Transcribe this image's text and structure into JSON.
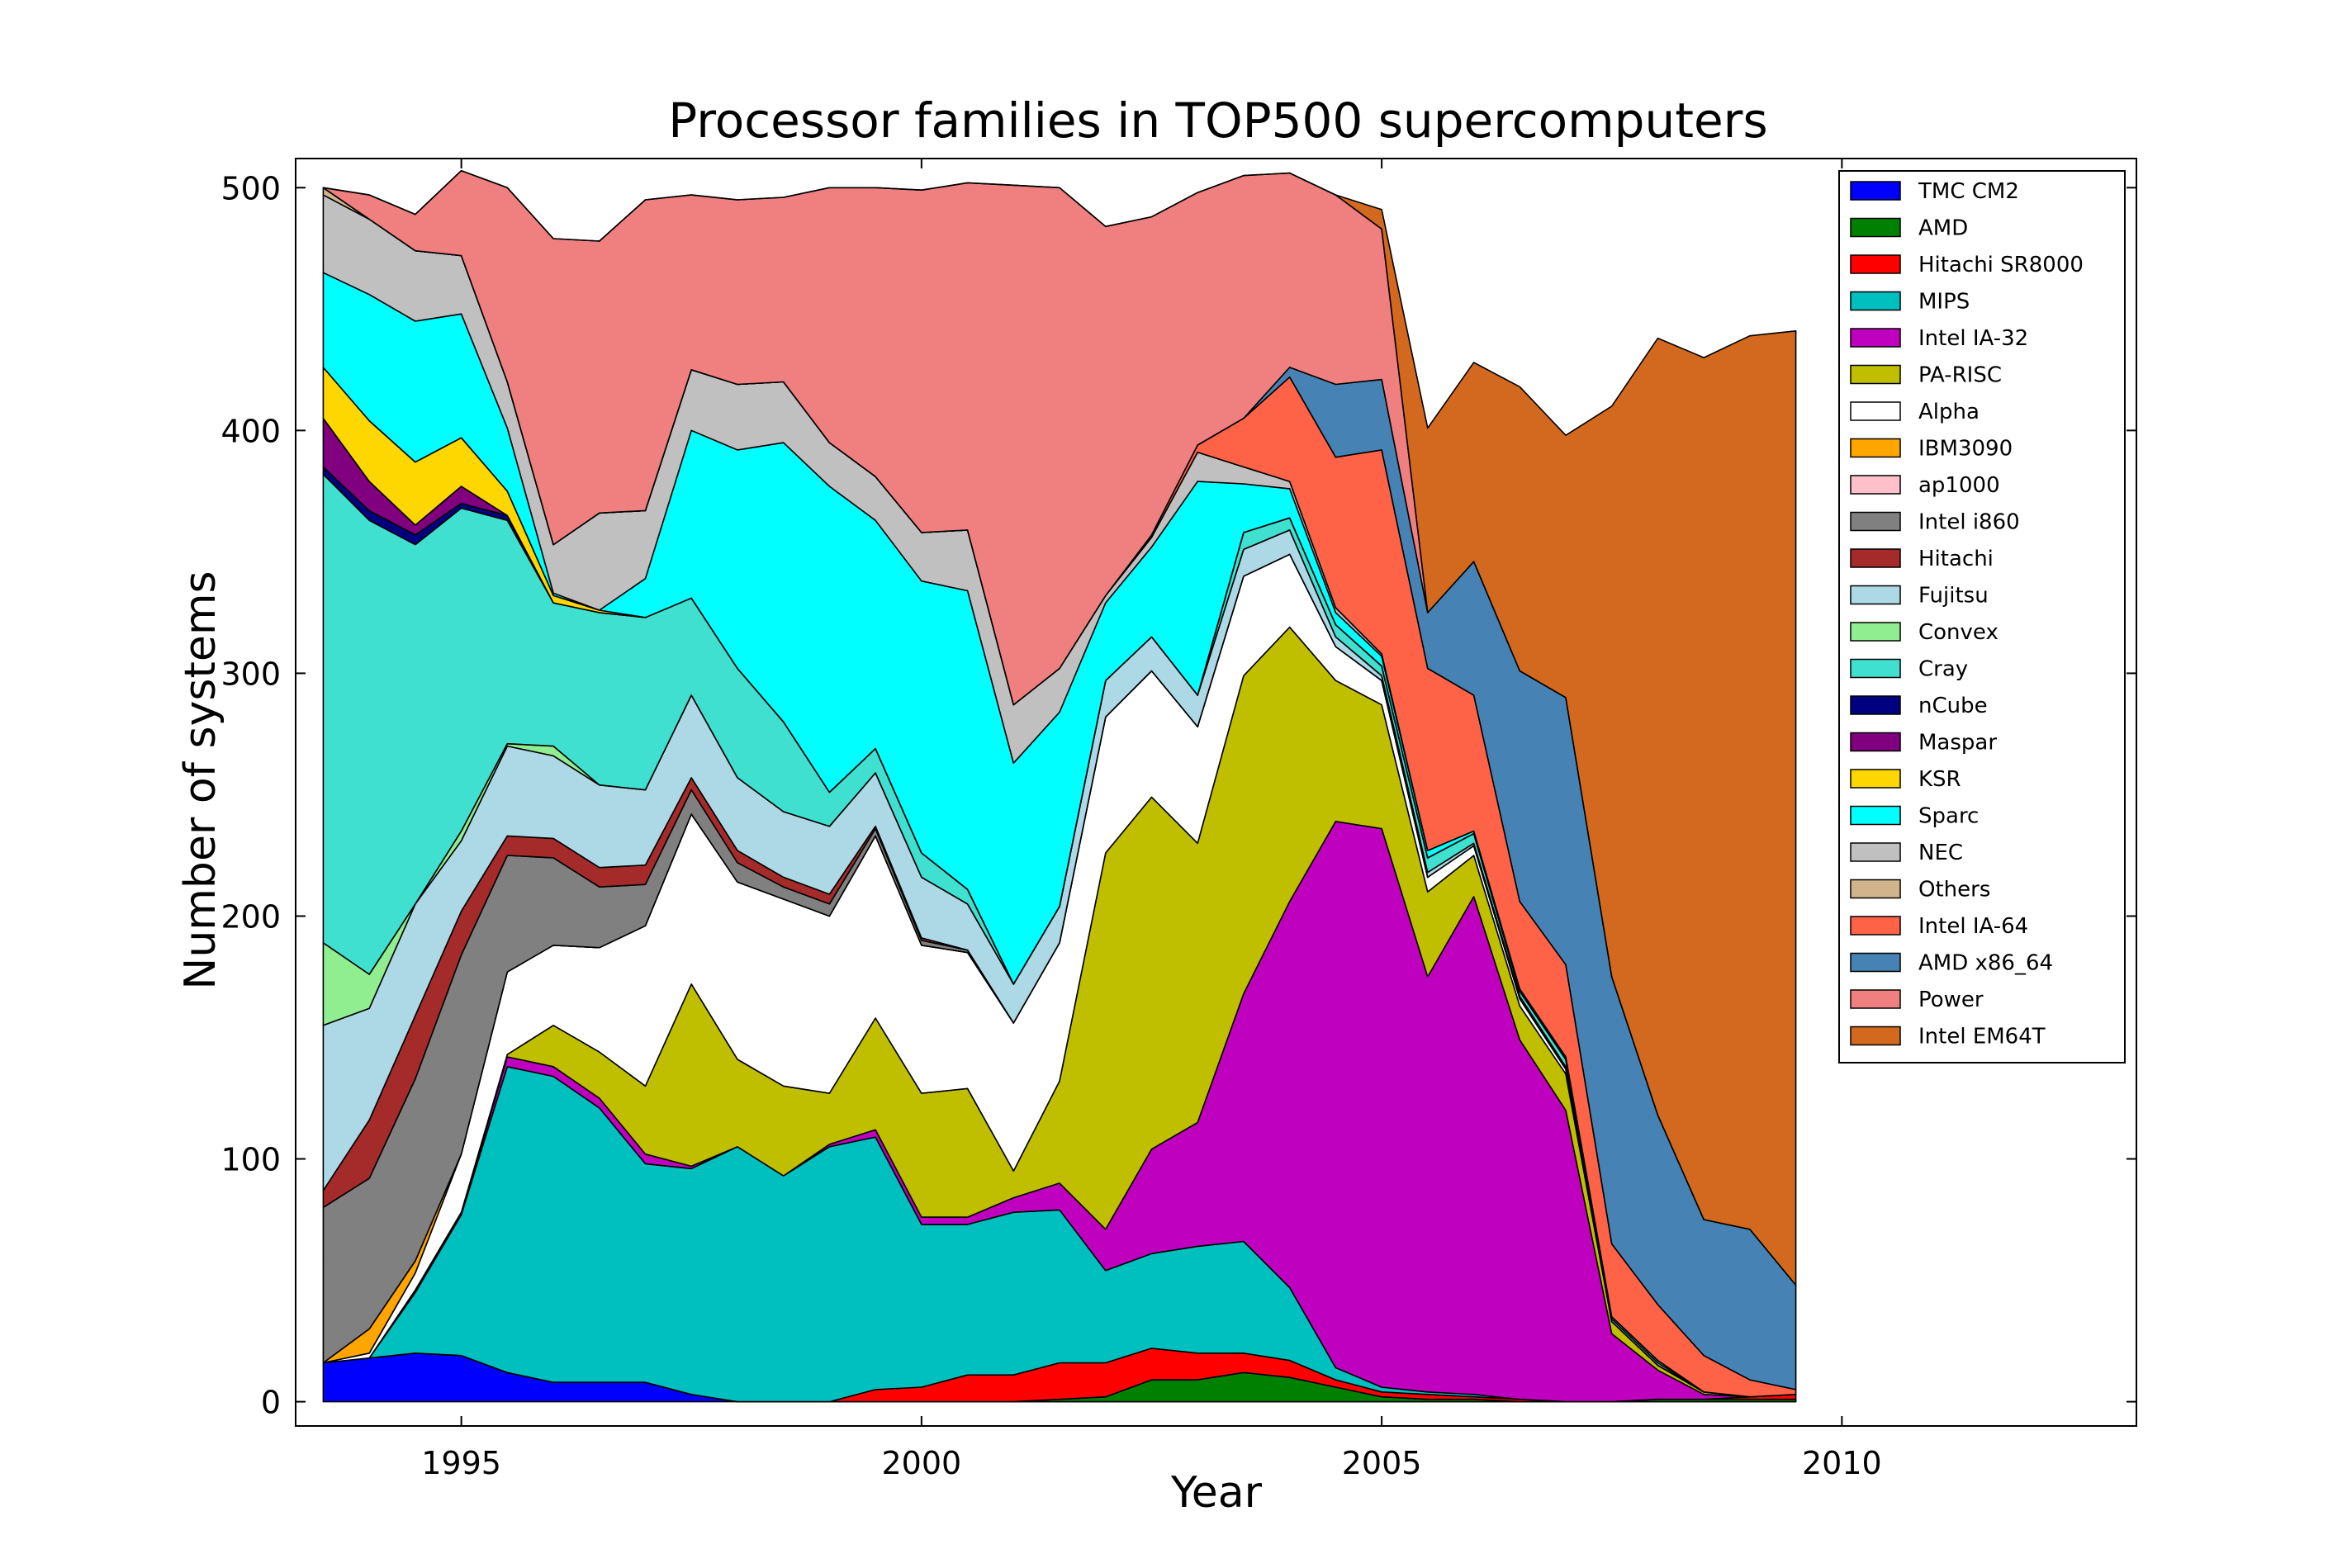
{
  "chart_data": {
    "type": "area",
    "stacked": true,
    "title": "Processor families in TOP500 supercomputers",
    "xlabel": "Year",
    "ylabel": "Number of systems",
    "xlim": [
      1993.2,
      2013.2
    ],
    "ylim": [
      -10,
      512
    ],
    "xticks": [
      1995,
      2000,
      2005,
      2010
    ],
    "yticks": [
      0,
      100,
      200,
      300,
      400,
      500
    ],
    "grid": false,
    "legend_position": "top-right",
    "x": [
      1993.5,
      1994.0,
      1994.5,
      1995.0,
      1995.5,
      1996.0,
      1996.5,
      1997.0,
      1997.5,
      1998.0,
      1998.5,
      1999.0,
      1999.5,
      2000.0,
      2000.5,
      2001.0,
      2001.5,
      2002.0,
      2002.5,
      2003.0,
      2003.5,
      2004.0,
      2004.5,
      2005.0,
      2005.5,
      2006.0,
      2006.5,
      2007.0,
      2007.5,
      2008.0,
      2008.5,
      2009.0,
      2009.5
    ],
    "series": [
      {
        "name": "TMC CM2",
        "color": "#0000ff",
        "values": [
          16,
          18,
          20,
          19,
          12,
          8,
          8,
          8,
          3,
          0,
          0,
          0,
          0,
          0,
          0,
          0,
          0,
          0,
          0,
          0,
          0,
          0,
          0,
          0,
          0,
          0,
          0,
          0,
          0,
          0,
          0,
          0,
          0
        ]
      },
      {
        "name": "AMD",
        "color": "#008000",
        "values": [
          0,
          0,
          0,
          0,
          0,
          0,
          0,
          0,
          0,
          0,
          0,
          0,
          0,
          0,
          0,
          0,
          1,
          2,
          9,
          9,
          12,
          10,
          6,
          2,
          1,
          1,
          0,
          0,
          0,
          1,
          1,
          1,
          1
        ]
      },
      {
        "name": "Hitachi SR8000",
        "color": "#ff0000",
        "values": [
          0,
          0,
          0,
          0,
          0,
          0,
          0,
          0,
          0,
          0,
          0,
          0,
          5,
          6,
          11,
          11,
          15,
          14,
          13,
          11,
          8,
          7,
          3,
          2,
          2,
          1,
          1,
          0,
          0,
          0,
          0,
          1,
          2
        ]
      },
      {
        "name": "MIPS",
        "color": "#00bfbf",
        "values": [
          0,
          0,
          25,
          58,
          126,
          126,
          113,
          90,
          93,
          105,
          93,
          105,
          104,
          67,
          62,
          67,
          63,
          38,
          39,
          44,
          46,
          30,
          5,
          2,
          1,
          1,
          0,
          0,
          0,
          0,
          0,
          0,
          0
        ]
      },
      {
        "name": "Intel IA-32",
        "color": "#bf00bf",
        "values": [
          0,
          0,
          0,
          0,
          4,
          4,
          4,
          4,
          1,
          0,
          0,
          1,
          3,
          3,
          3,
          6,
          11,
          17,
          43,
          51,
          102,
          159,
          225,
          230,
          171,
          205,
          148,
          120,
          28,
          12,
          2,
          0,
          0
        ]
      },
      {
        "name": "PA-RISC",
        "color": "#bfbf00",
        "values": [
          0,
          0,
          1,
          1,
          1,
          17,
          19,
          28,
          75,
          36,
          37,
          21,
          46,
          51,
          53,
          11,
          42,
          155,
          145,
          115,
          131,
          113,
          58,
          51,
          35,
          17,
          14,
          15,
          5,
          2,
          1,
          0,
          0
        ]
      },
      {
        "name": "Alpha",
        "color": "#ffffff",
        "values": [
          0,
          2,
          7,
          24,
          34,
          33,
          43,
          66,
          70,
          73,
          77,
          73,
          75,
          61,
          56,
          61,
          57,
          56,
          52,
          48,
          41,
          30,
          14,
          10,
          6,
          4,
          3,
          2,
          0,
          0,
          0,
          0,
          0
        ]
      },
      {
        "name": "IBM3090",
        "color": "#ffa500",
        "values": [
          0,
          10,
          5,
          0,
          0,
          0,
          0,
          0,
          0,
          0,
          0,
          0,
          0,
          0,
          0,
          0,
          0,
          0,
          0,
          0,
          0,
          0,
          0,
          0,
          0,
          0,
          0,
          0,
          0,
          0,
          0,
          0,
          0
        ]
      },
      {
        "name": "ap1000",
        "color": "#ffc0cb",
        "values": [
          0,
          0,
          0,
          0,
          0,
          0,
          0,
          0,
          0,
          0,
          0,
          0,
          0,
          0,
          0,
          0,
          0,
          0,
          0,
          0,
          0,
          0,
          0,
          0,
          0,
          0,
          0,
          0,
          0,
          0,
          0,
          0,
          0
        ]
      },
      {
        "name": "Intel i860",
        "color": "#808080",
        "values": [
          64,
          62,
          75,
          82,
          48,
          36,
          25,
          17,
          10,
          8,
          5,
          5,
          3,
          2,
          1,
          0,
          0,
          0,
          0,
          0,
          0,
          0,
          0,
          0,
          0,
          0,
          0,
          0,
          0,
          0,
          0,
          0,
          0
        ]
      },
      {
        "name": "Hitachi",
        "color": "#a52a2a",
        "values": [
          7,
          24,
          26,
          18,
          8,
          8,
          8,
          8,
          5,
          5,
          4,
          4,
          1,
          1,
          0,
          0,
          0,
          0,
          0,
          0,
          0,
          0,
          0,
          0,
          0,
          0,
          0,
          0,
          0,
          0,
          0,
          0,
          0
        ]
      },
      {
        "name": "Fujitsu",
        "color": "#add8e6",
        "values": [
          68,
          46,
          46,
          29,
          37,
          34,
          34,
          31,
          34,
          30,
          27,
          28,
          22,
          25,
          19,
          16,
          15,
          15,
          14,
          13,
          11,
          10,
          4,
          2,
          2,
          1,
          1,
          1,
          1,
          1,
          0,
          0,
          0
        ]
      },
      {
        "name": "Convex",
        "color": "#90ee90",
        "values": [
          34,
          14,
          0,
          4,
          1,
          4,
          0,
          0,
          0,
          0,
          0,
          0,
          0,
          0,
          0,
          0,
          0,
          0,
          0,
          0,
          0,
          0,
          0,
          0,
          0,
          0,
          0,
          0,
          0,
          0,
          0,
          0,
          0
        ]
      },
      {
        "name": "Cray",
        "color": "#40e0d0",
        "values": [
          193,
          187,
          148,
          133,
          92,
          59,
          71,
          71,
          40,
          45,
          37,
          14,
          10,
          10,
          6,
          0,
          0,
          0,
          0,
          0,
          7,
          5,
          5,
          4,
          6,
          4,
          2,
          3,
          1,
          1,
          0,
          0,
          0
        ]
      },
      {
        "name": "nCube",
        "color": "#000080",
        "values": [
          3,
          4,
          4,
          2,
          2,
          0,
          0,
          0,
          0,
          0,
          0,
          0,
          0,
          0,
          0,
          0,
          0,
          0,
          0,
          0,
          0,
          0,
          0,
          0,
          0,
          0,
          0,
          0,
          0,
          0,
          0,
          0,
          0
        ]
      },
      {
        "name": "Maspar",
        "color": "#800080",
        "values": [
          20,
          12,
          4,
          7,
          0,
          0,
          0,
          0,
          0,
          0,
          0,
          0,
          0,
          0,
          0,
          0,
          0,
          0,
          0,
          0,
          0,
          0,
          0,
          0,
          0,
          0,
          0,
          0,
          0,
          0,
          0,
          0,
          0
        ]
      },
      {
        "name": "KSR",
        "color": "#ffd700",
        "values": [
          21,
          25,
          26,
          20,
          10,
          3,
          1,
          0,
          0,
          0,
          0,
          0,
          0,
          0,
          0,
          0,
          0,
          0,
          0,
          0,
          0,
          0,
          0,
          0,
          0,
          0,
          0,
          0,
          0,
          0,
          0,
          0,
          0
        ]
      },
      {
        "name": "Sparc",
        "color": "#00ffff",
        "values": [
          39,
          52,
          58,
          51,
          26,
          1,
          0,
          16,
          69,
          90,
          115,
          126,
          94,
          112,
          123,
          91,
          80,
          32,
          37,
          88,
          20,
          12,
          5,
          4,
          3,
          1,
          1,
          1,
          0,
          0,
          0,
          0,
          0
        ]
      },
      {
        "name": "NEC",
        "color": "#c0c0c0",
        "values": [
          32,
          31,
          29,
          24,
          19,
          20,
          40,
          28,
          25,
          27,
          25,
          18,
          18,
          20,
          25,
          24,
          18,
          3,
          4,
          12,
          7,
          3,
          2,
          1,
          0,
          0,
          0,
          0,
          0,
          0,
          0,
          0,
          0
        ]
      },
      {
        "name": "Others",
        "color": "#d2b48c",
        "values": [
          3,
          0,
          0,
          0,
          0,
          0,
          0,
          0,
          0,
          0,
          0,
          0,
          0,
          0,
          0,
          0,
          0,
          0,
          0,
          0,
          0,
          0,
          0,
          0,
          0,
          0,
          0,
          0,
          0,
          0,
          0,
          0,
          0
        ]
      },
      {
        "name": "Intel IA-64",
        "color": "#ff6347",
        "values": [
          0,
          0,
          0,
          0,
          0,
          0,
          0,
          0,
          0,
          0,
          0,
          0,
          0,
          0,
          0,
          0,
          0,
          0,
          1,
          3,
          20,
          43,
          62,
          84,
          75,
          56,
          36,
          38,
          30,
          23,
          15,
          7,
          2
        ]
      },
      {
        "name": "AMD x86_64",
        "color": "#4682b4",
        "values": [
          0,
          0,
          0,
          0,
          0,
          0,
          0,
          0,
          0,
          0,
          0,
          0,
          0,
          0,
          0,
          0,
          0,
          0,
          0,
          0,
          0,
          4,
          30,
          29,
          23,
          55,
          95,
          110,
          110,
          78,
          56,
          62,
          43
        ]
      },
      {
        "name": "Power",
        "color": "#f08080",
        "values": [
          0,
          10,
          15,
          35,
          80,
          126,
          112,
          128,
          72,
          76,
          76,
          105,
          119,
          141,
          143,
          214,
          198,
          152,
          131,
          104,
          100,
          80,
          78,
          62,
          0,
          0,
          0,
          0,
          0,
          0,
          0,
          0,
          0
        ]
      },
      {
        "name": "Intel EM64T",
        "color": "#d2691e",
        "values": [
          0,
          0,
          0,
          0,
          0,
          0,
          0,
          0,
          0,
          0,
          0,
          0,
          0,
          0,
          0,
          0,
          0,
          0,
          0,
          0,
          0,
          0,
          0,
          8,
          76,
          82,
          117,
          108,
          235,
          320,
          355,
          368,
          393
        ]
      }
    ]
  }
}
